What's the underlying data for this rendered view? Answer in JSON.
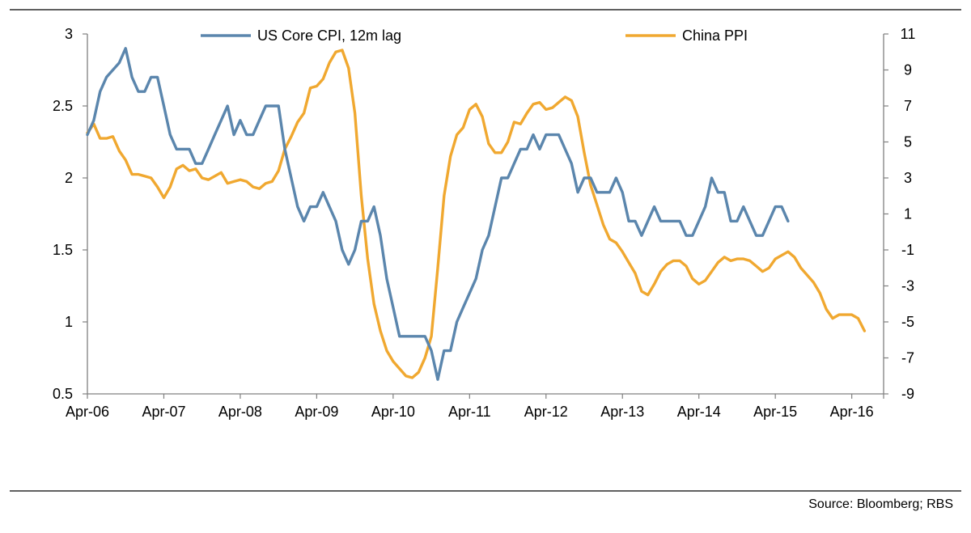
{
  "chart_data": {
    "type": "line",
    "title": "",
    "x_tick_labels": [
      "Apr-06",
      "Apr-07",
      "Apr-08",
      "Apr-09",
      "Apr-10",
      "Apr-11",
      "Apr-12",
      "Apr-13",
      "Apr-14",
      "Apr-15",
      "Apr-16"
    ],
    "x_range_months": [
      0,
      125
    ],
    "left_axis": {
      "min": 0.5,
      "max": 3,
      "ticks": [
        "0.5",
        "1",
        "1.5",
        "2",
        "2.5",
        "3"
      ]
    },
    "right_axis": {
      "min": -9,
      "max": 11,
      "ticks": [
        "-9",
        "-7",
        "-5",
        "-3",
        "-1",
        "1",
        "3",
        "5",
        "7",
        "9",
        "11"
      ]
    },
    "series": [
      {
        "name": "US Core CPI, 12m lag",
        "axis": "left",
        "color": "#5b86ad",
        "points": [
          [
            0,
            2.3
          ],
          [
            1,
            2.4
          ],
          [
            2,
            2.6
          ],
          [
            3,
            2.7
          ],
          [
            4,
            2.75
          ],
          [
            5,
            2.8
          ],
          [
            6,
            2.9
          ],
          [
            7,
            2.7
          ],
          [
            8,
            2.6
          ],
          [
            9,
            2.6
          ],
          [
            10,
            2.7
          ],
          [
            11,
            2.7
          ],
          [
            12,
            2.5
          ],
          [
            13,
            2.3
          ],
          [
            14,
            2.2
          ],
          [
            15,
            2.2
          ],
          [
            16,
            2.2
          ],
          [
            17,
            2.1
          ],
          [
            18,
            2.1
          ],
          [
            19,
            2.2
          ],
          [
            20,
            2.3
          ],
          [
            21,
            2.4
          ],
          [
            22,
            2.5
          ],
          [
            23,
            2.3
          ],
          [
            24,
            2.4
          ],
          [
            25,
            2.3
          ],
          [
            26,
            2.3
          ],
          [
            27,
            2.4
          ],
          [
            28,
            2.5
          ],
          [
            29,
            2.5
          ],
          [
            30,
            2.5
          ],
          [
            31,
            2.2
          ],
          [
            32,
            2.0
          ],
          [
            33,
            1.8
          ],
          [
            34,
            1.7
          ],
          [
            35,
            1.8
          ],
          [
            36,
            1.8
          ],
          [
            37,
            1.9
          ],
          [
            38,
            1.8
          ],
          [
            39,
            1.7
          ],
          [
            40,
            1.5
          ],
          [
            41,
            1.4
          ],
          [
            42,
            1.5
          ],
          [
            43,
            1.7
          ],
          [
            44,
            1.7
          ],
          [
            45,
            1.8
          ],
          [
            46,
            1.6
          ],
          [
            47,
            1.3
          ],
          [
            48,
            1.1
          ],
          [
            49,
            0.9
          ],
          [
            50,
            0.9
          ],
          [
            51,
            0.9
          ],
          [
            52,
            0.9
          ],
          [
            53,
            0.9
          ],
          [
            54,
            0.8
          ],
          [
            55,
            0.6
          ],
          [
            56,
            0.8
          ],
          [
            57,
            0.8
          ],
          [
            58,
            1.0
          ],
          [
            59,
            1.1
          ],
          [
            60,
            1.2
          ],
          [
            61,
            1.3
          ],
          [
            62,
            1.5
          ],
          [
            63,
            1.6
          ],
          [
            64,
            1.8
          ],
          [
            65,
            2.0
          ],
          [
            66,
            2.0
          ],
          [
            67,
            2.1
          ],
          [
            68,
            2.2
          ],
          [
            69,
            2.2
          ],
          [
            70,
            2.3
          ],
          [
            71,
            2.2
          ],
          [
            72,
            2.3
          ],
          [
            73,
            2.3
          ],
          [
            74,
            2.3
          ],
          [
            75,
            2.2
          ],
          [
            76,
            2.1
          ],
          [
            77,
            1.9
          ],
          [
            78,
            2.0
          ],
          [
            79,
            2.0
          ],
          [
            80,
            1.9
          ],
          [
            81,
            1.9
          ],
          [
            82,
            1.9
          ],
          [
            83,
            2.0
          ],
          [
            84,
            1.9
          ],
          [
            85,
            1.7
          ],
          [
            86,
            1.7
          ],
          [
            87,
            1.6
          ],
          [
            88,
            1.7
          ],
          [
            89,
            1.8
          ],
          [
            90,
            1.7
          ],
          [
            91,
            1.7
          ],
          [
            92,
            1.7
          ],
          [
            93,
            1.7
          ],
          [
            94,
            1.6
          ],
          [
            95,
            1.6
          ],
          [
            96,
            1.7
          ],
          [
            97,
            1.8
          ],
          [
            98,
            2.0
          ],
          [
            99,
            1.9
          ],
          [
            100,
            1.9
          ],
          [
            101,
            1.7
          ],
          [
            102,
            1.7
          ],
          [
            103,
            1.8
          ],
          [
            104,
            1.7
          ],
          [
            105,
            1.6
          ],
          [
            106,
            1.6
          ],
          [
            107,
            1.7
          ],
          [
            108,
            1.8
          ],
          [
            109,
            1.8
          ],
          [
            110,
            1.7
          ]
        ]
      },
      {
        "name": "China PPI",
        "axis": "right",
        "color": "#f0a830",
        "points": [
          [
            0,
            5.5
          ],
          [
            1,
            6.0
          ],
          [
            2,
            5.2
          ],
          [
            3,
            5.2
          ],
          [
            4,
            5.3
          ],
          [
            5,
            4.5
          ],
          [
            6,
            4.0
          ],
          [
            7,
            3.2
          ],
          [
            8,
            3.2
          ],
          [
            9,
            3.1
          ],
          [
            10,
            3.0
          ],
          [
            11,
            2.5
          ],
          [
            12,
            1.9
          ],
          [
            13,
            2.5
          ],
          [
            14,
            3.5
          ],
          [
            15,
            3.7
          ],
          [
            16,
            3.4
          ],
          [
            17,
            3.5
          ],
          [
            18,
            3.0
          ],
          [
            19,
            2.9
          ],
          [
            20,
            3.1
          ],
          [
            21,
            3.3
          ],
          [
            22,
            2.7
          ],
          [
            23,
            2.8
          ],
          [
            24,
            2.9
          ],
          [
            25,
            2.8
          ],
          [
            26,
            2.5
          ],
          [
            27,
            2.4
          ],
          [
            28,
            2.7
          ],
          [
            29,
            2.8
          ],
          [
            30,
            3.4
          ],
          [
            31,
            4.6
          ],
          [
            32,
            5.3
          ],
          [
            33,
            6.1
          ],
          [
            34,
            6.6
          ],
          [
            35,
            8.0
          ],
          [
            36,
            8.1
          ],
          [
            37,
            8.5
          ],
          [
            38,
            9.4
          ],
          [
            39,
            10.0
          ],
          [
            40,
            10.1
          ],
          [
            41,
            9.1
          ],
          [
            42,
            6.6
          ],
          [
            43,
            2.0
          ],
          [
            44,
            -1.5
          ],
          [
            45,
            -4.0
          ],
          [
            46,
            -5.5
          ],
          [
            47,
            -6.6
          ],
          [
            48,
            -7.2
          ],
          [
            49,
            -7.6
          ],
          [
            50,
            -8.0
          ],
          [
            51,
            -8.1
          ],
          [
            52,
            -7.8
          ],
          [
            53,
            -7.0
          ],
          [
            54,
            -5.8
          ],
          [
            55,
            -2.0
          ],
          [
            56,
            2.0
          ],
          [
            57,
            4.2
          ],
          [
            58,
            5.4
          ],
          [
            59,
            5.8
          ],
          [
            60,
            6.8
          ],
          [
            61,
            7.1
          ],
          [
            62,
            6.4
          ],
          [
            63,
            4.9
          ],
          [
            64,
            4.4
          ],
          [
            65,
            4.4
          ],
          [
            66,
            5.0
          ],
          [
            67,
            6.1
          ],
          [
            68,
            6.0
          ],
          [
            69,
            6.6
          ],
          [
            70,
            7.1
          ],
          [
            71,
            7.2
          ],
          [
            72,
            6.8
          ],
          [
            73,
            6.9
          ],
          [
            74,
            7.2
          ],
          [
            75,
            7.5
          ],
          [
            76,
            7.3
          ],
          [
            77,
            6.4
          ],
          [
            78,
            4.4
          ],
          [
            79,
            2.6
          ],
          [
            80,
            1.5
          ],
          [
            81,
            0.4
          ],
          [
            82,
            -0.4
          ],
          [
            83,
            -0.6
          ],
          [
            84,
            -1.1
          ],
          [
            85,
            -1.7
          ],
          [
            86,
            -2.3
          ],
          [
            87,
            -3.3
          ],
          [
            88,
            -3.5
          ],
          [
            89,
            -2.9
          ],
          [
            90,
            -2.2
          ],
          [
            91,
            -1.8
          ],
          [
            92,
            -1.6
          ],
          [
            93,
            -1.6
          ],
          [
            94,
            -1.9
          ],
          [
            95,
            -2.6
          ],
          [
            96,
            -2.9
          ],
          [
            97,
            -2.7
          ],
          [
            98,
            -2.2
          ],
          [
            99,
            -1.7
          ],
          [
            100,
            -1.4
          ],
          [
            101,
            -1.6
          ],
          [
            102,
            -1.5
          ],
          [
            103,
            -1.5
          ],
          [
            104,
            -1.6
          ],
          [
            105,
            -1.9
          ],
          [
            106,
            -2.2
          ],
          [
            107,
            -2.0
          ],
          [
            108,
            -1.5
          ],
          [
            109,
            -1.3
          ],
          [
            110,
            -1.1
          ],
          [
            111,
            -1.4
          ],
          [
            112,
            -2.0
          ],
          [
            113,
            -2.4
          ],
          [
            114,
            -2.8
          ],
          [
            115,
            -3.4
          ],
          [
            116,
            -4.3
          ],
          [
            117,
            -4.8
          ],
          [
            118,
            -4.6
          ],
          [
            119,
            -4.6
          ],
          [
            120,
            -4.6
          ],
          [
            121,
            -4.8
          ],
          [
            122,
            -5.5
          ]
        ]
      }
    ],
    "source": "Source:  Bloomberg; RBS"
  }
}
